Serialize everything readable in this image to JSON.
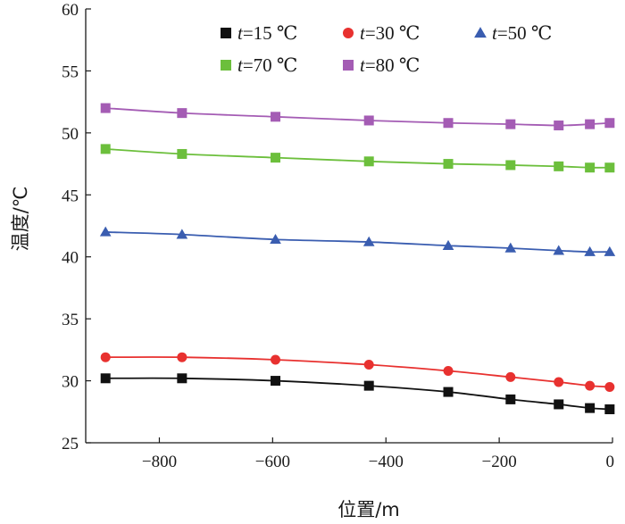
{
  "chart_data": {
    "type": "line",
    "xlabel": "位置/m",
    "ylabel": "温度/℃",
    "xlim": [
      -930,
      0
    ],
    "ylim": [
      25,
      60
    ],
    "xticks": [
      -800,
      -600,
      -400,
      -200,
      0
    ],
    "yticks": [
      25,
      30,
      35,
      40,
      45,
      50,
      55,
      60
    ],
    "xtick_labels": [
      "−800",
      "−600",
      "−400",
      "−200",
      "0"
    ],
    "ytick_labels": [
      "25",
      "30",
      "35",
      "40",
      "45",
      "50",
      "55",
      "60"
    ],
    "x": [
      -895,
      -760,
      -595,
      -430,
      -290,
      -180,
      -95,
      -40,
      -5
    ],
    "legend_position": "top-right",
    "grid": false,
    "series": [
      {
        "name_prefix": "t",
        "name": "=15 ℃",
        "marker": "square",
        "color": "#111111",
        "values": [
          30.2,
          30.2,
          30.0,
          29.6,
          29.1,
          28.5,
          28.1,
          27.8,
          27.7
        ]
      },
      {
        "name_prefix": "t",
        "name": "=30 ℃",
        "marker": "circle",
        "color": "#e8312f",
        "values": [
          31.9,
          31.9,
          31.7,
          31.3,
          30.8,
          30.3,
          29.9,
          29.6,
          29.5
        ]
      },
      {
        "name_prefix": "t",
        "name": "=50 ℃",
        "marker": "triangle",
        "color": "#3a5db0",
        "values": [
          42.0,
          41.8,
          41.4,
          41.2,
          40.9,
          40.7,
          40.5,
          40.4,
          40.4
        ]
      },
      {
        "name_prefix": "t",
        "name": "=70 ℃",
        "marker": "square",
        "color": "#6cbf3c",
        "values": [
          48.7,
          48.3,
          48.0,
          47.7,
          47.5,
          47.4,
          47.3,
          47.2,
          47.2
        ]
      },
      {
        "name_prefix": "t",
        "name": "=80 ℃",
        "marker": "square",
        "color": "#a45cb4",
        "values": [
          52.0,
          51.6,
          51.3,
          51.0,
          50.8,
          50.7,
          50.6,
          50.7,
          50.8
        ]
      }
    ]
  }
}
